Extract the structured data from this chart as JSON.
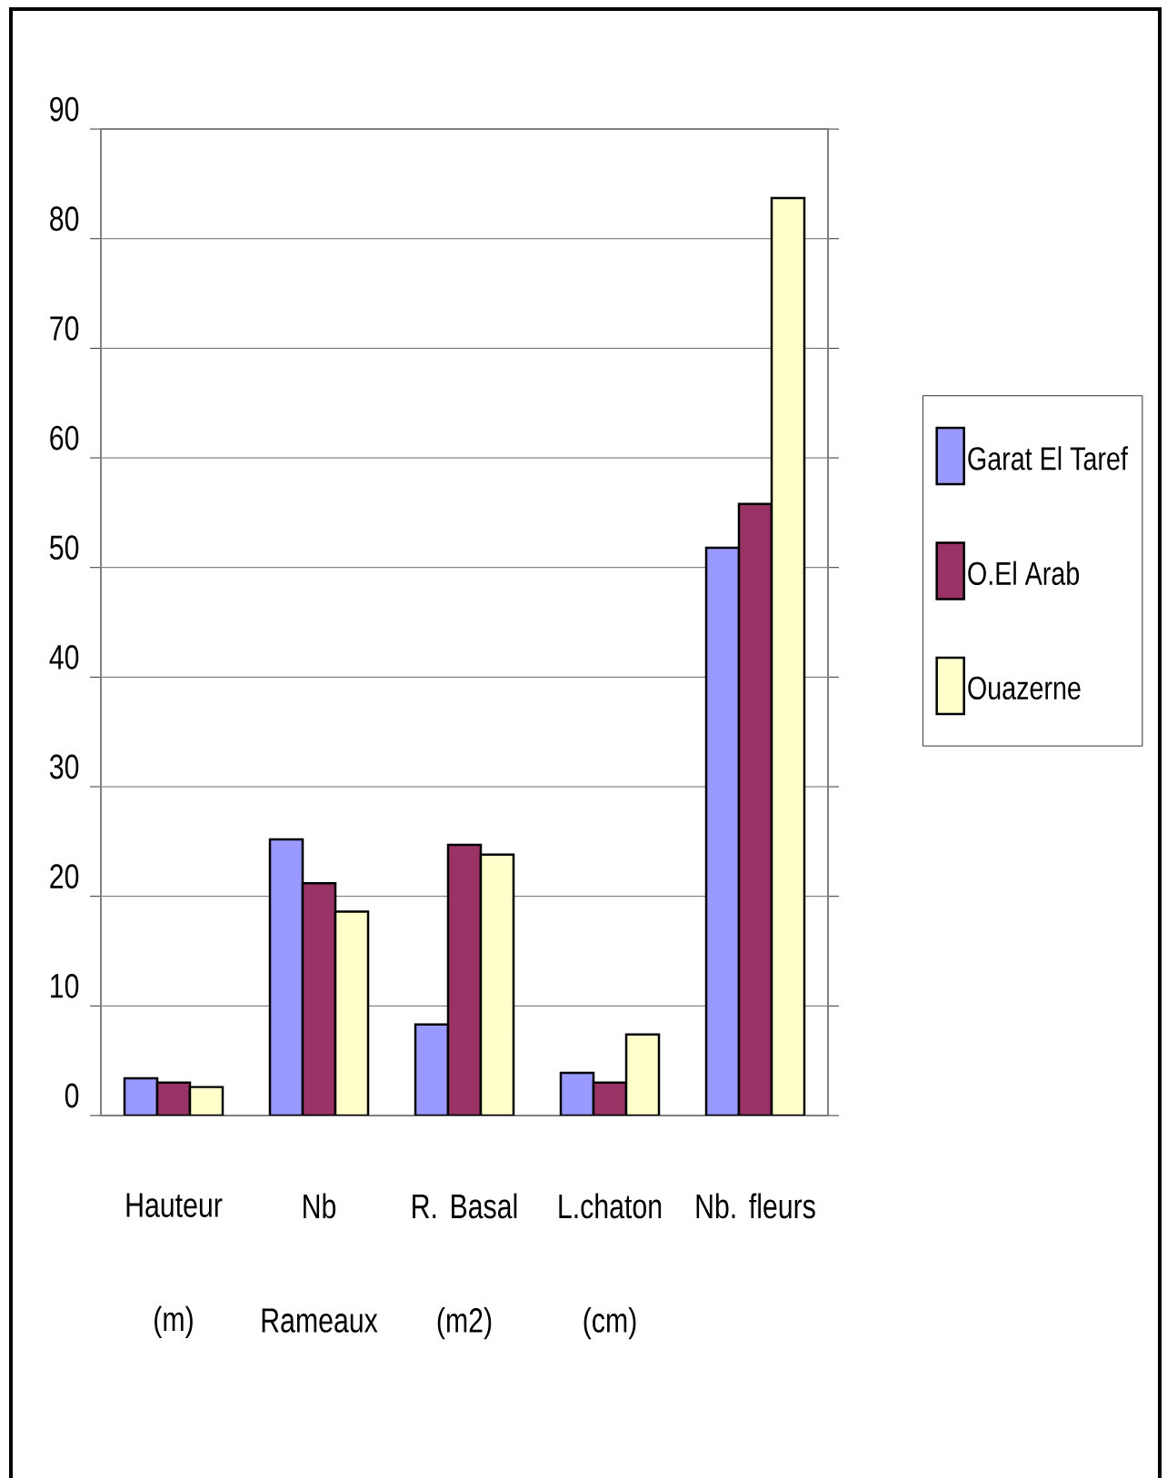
{
  "chart_data": {
    "type": "bar",
    "categories": [
      "Hauteur (m)",
      "Nb Rameaux",
      "R. Basal (m2)",
      "L.chaton (cm)",
      "Nb. fleurs"
    ],
    "series": [
      {
        "name": "Garat El Taref",
        "color": "#9999ff",
        "values": [
          3.4,
          25.2,
          8.3,
          3.9,
          51.8
        ]
      },
      {
        "name": "O.El Arab",
        "color": "#993366",
        "values": [
          3.0,
          21.2,
          24.7,
          3.0,
          55.8
        ]
      },
      {
        "name": "Ouazerne",
        "color": "#ffffcc",
        "values": [
          2.6,
          18.6,
          23.8,
          7.4,
          83.7
        ]
      }
    ],
    "ylim": [
      0,
      90
    ],
    "yticks": [
      0,
      10,
      20,
      30,
      40,
      50,
      60,
      70,
      80,
      90
    ],
    "grid": "y",
    "legend": "right"
  }
}
